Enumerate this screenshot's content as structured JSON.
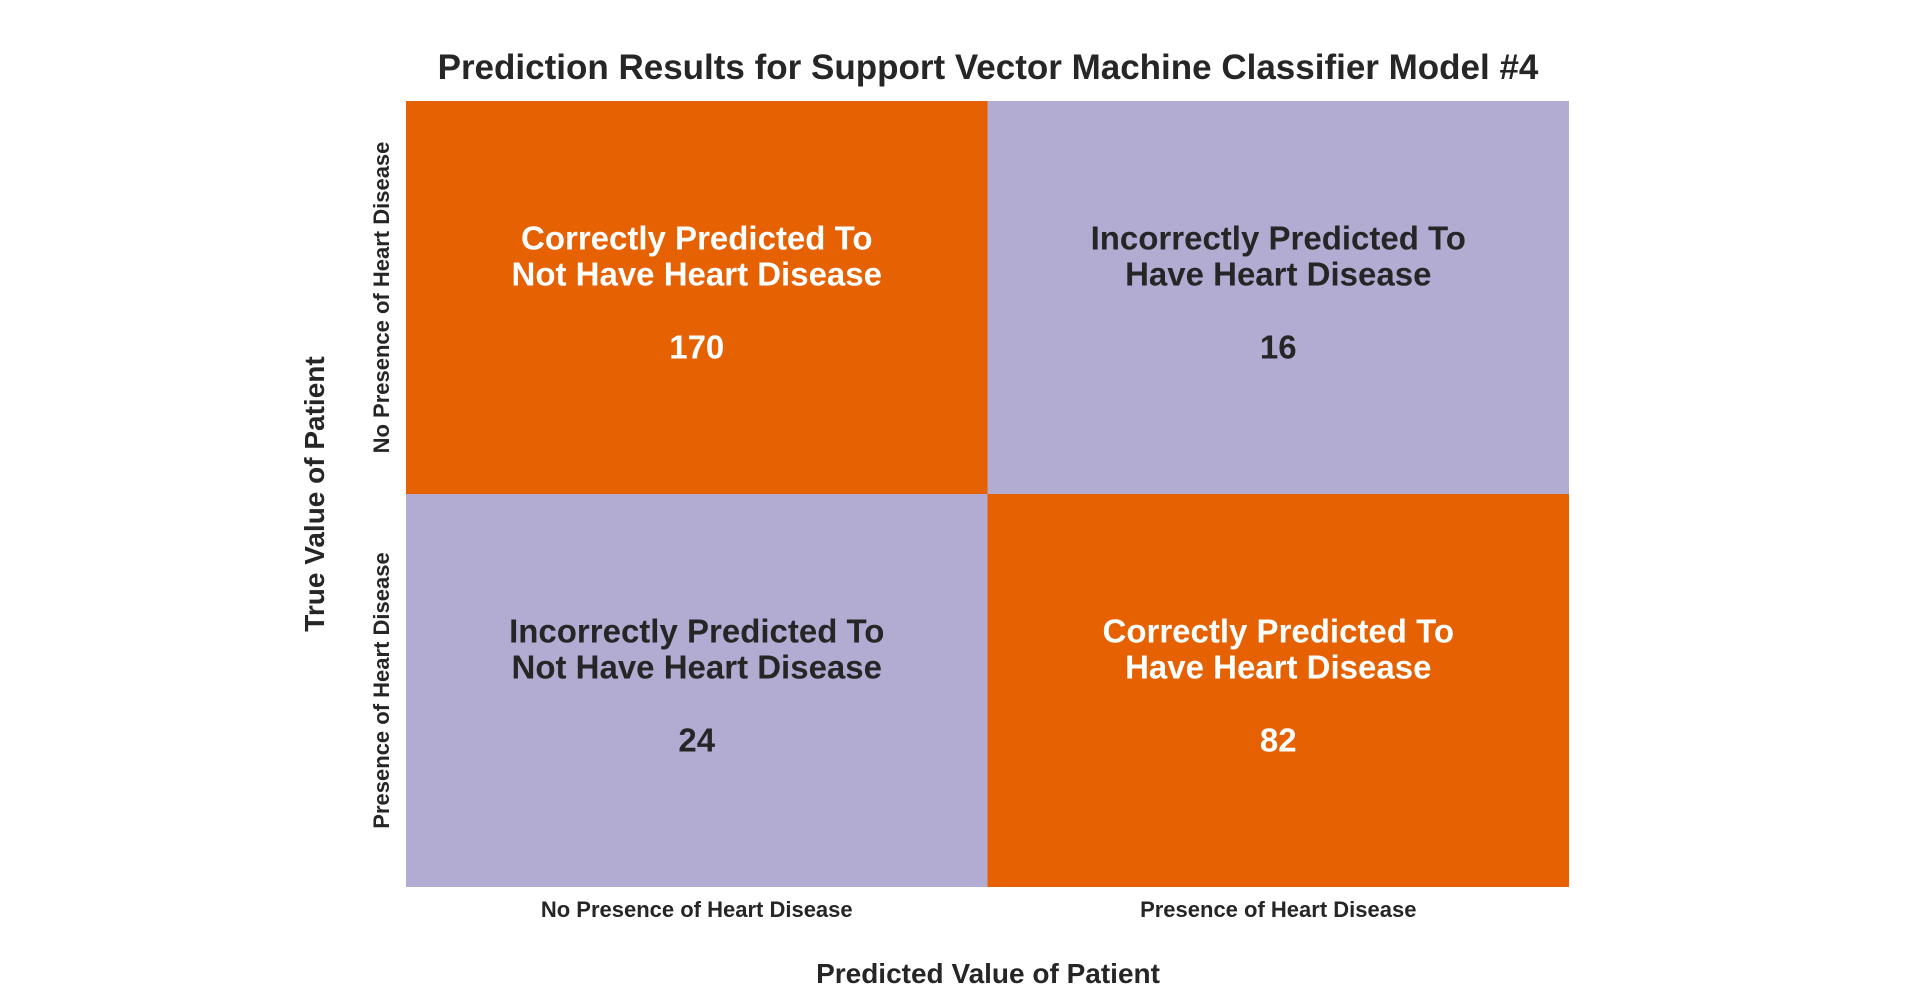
{
  "chart_data": {
    "type": "heatmap",
    "title": "Prediction Results for Support Vector Machine Classifier Model #4",
    "xlabel": "Predicted Value of Patient",
    "ylabel": "True Value of Patient",
    "x_categories": [
      "No Presence of Heart Disease",
      "Presence of Heart Disease"
    ],
    "y_categories": [
      "No Presence of Heart Disease",
      "Presence of Heart Disease"
    ],
    "cells": [
      {
        "row": 0,
        "col": 0,
        "label_lines": [
          "Correctly Predicted To",
          "Not Have Heart Disease"
        ],
        "value": 170,
        "color": "#e66101",
        "text_color": "#ffffff"
      },
      {
        "row": 0,
        "col": 1,
        "label_lines": [
          "Incorrectly Predicted To",
          "Have Heart Disease"
        ],
        "value": 16,
        "color": "#b2abd2",
        "text_color": "#262626"
      },
      {
        "row": 1,
        "col": 0,
        "label_lines": [
          "Incorrectly Predicted To",
          "Not Have Heart Disease"
        ],
        "value": 24,
        "color": "#b2abd2",
        "text_color": "#262626"
      },
      {
        "row": 1,
        "col": 1,
        "label_lines": [
          "Correctly Predicted To",
          "Have Heart Disease"
        ],
        "value": 82,
        "color": "#e66101",
        "text_color": "#ffffff"
      }
    ]
  }
}
